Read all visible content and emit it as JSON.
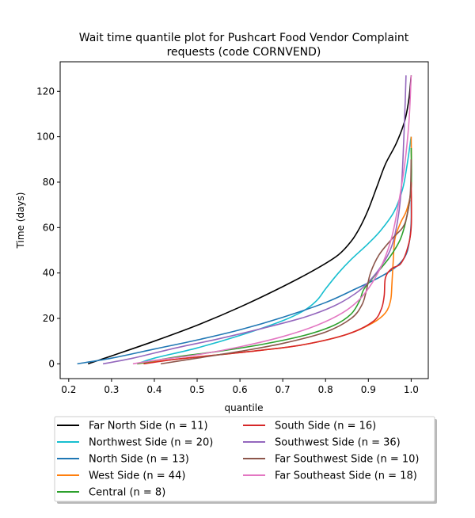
{
  "chart_data": {
    "type": "line",
    "title_line1": "Wait time quantile plot for Pushcart Food Vendor Complaint",
    "title_line2": "requests (code CORNVEND)",
    "xlabel": "quantile",
    "ylabel": "Time (days)",
    "xlim": [
      0.18,
      1.04
    ],
    "ylim": [
      -6.5,
      133
    ],
    "xticks": [
      0.2,
      0.3,
      0.4,
      0.5,
      0.6,
      0.7,
      0.8,
      0.9,
      1.0
    ],
    "xtick_labels": [
      "0.2",
      "0.3",
      "0.4",
      "0.5",
      "0.6",
      "0.7",
      "0.8",
      "0.9",
      "1.0"
    ],
    "yticks": [
      0,
      20,
      40,
      60,
      80,
      100,
      120
    ],
    "ytick_labels": [
      "0",
      "20",
      "40",
      "60",
      "80",
      "100",
      "120"
    ],
    "grid": false,
    "legend_placement": "below plot",
    "series": [
      {
        "name": "Far North Side (n = 11)",
        "color": "#000000",
        "points": [
          [
            0.245,
            0
          ],
          [
            0.3,
            3.5
          ],
          [
            0.4,
            10
          ],
          [
            0.5,
            17
          ],
          [
            0.6,
            25
          ],
          [
            0.7,
            34
          ],
          [
            0.78,
            42
          ],
          [
            0.83,
            48
          ],
          [
            0.86,
            54
          ],
          [
            0.88,
            60
          ],
          [
            0.9,
            68
          ],
          [
            0.92,
            78
          ],
          [
            0.94,
            88
          ],
          [
            0.965,
            97
          ],
          [
            0.985,
            107
          ],
          [
            0.995,
            117
          ],
          [
            1.0,
            127
          ]
        ]
      },
      {
        "name": "Northwest Side (n = 20)",
        "color": "#17becf",
        "points": [
          [
            0.36,
            0
          ],
          [
            0.4,
            2.5
          ],
          [
            0.5,
            7
          ],
          [
            0.6,
            12.5
          ],
          [
            0.7,
            19
          ],
          [
            0.75,
            23.5
          ],
          [
            0.78,
            28
          ],
          [
            0.8,
            33
          ],
          [
            0.83,
            40
          ],
          [
            0.86,
            46
          ],
          [
            0.9,
            53
          ],
          [
            0.93,
            59
          ],
          [
            0.96,
            67
          ],
          [
            0.98,
            77
          ],
          [
            0.99,
            87
          ],
          [
            1.0,
            100
          ]
        ]
      },
      {
        "name": "North Side (n = 13)",
        "color": "#1f77b4",
        "points": [
          [
            0.22,
            0
          ],
          [
            0.3,
            2.5
          ],
          [
            0.4,
            6.5
          ],
          [
            0.5,
            10.5
          ],
          [
            0.6,
            15
          ],
          [
            0.7,
            20.5
          ],
          [
            0.8,
            27
          ],
          [
            0.87,
            33
          ],
          [
            0.92,
            37.5
          ],
          [
            0.96,
            42
          ],
          [
            0.985,
            47
          ],
          [
            0.995,
            53
          ],
          [
            1.0,
            62
          ],
          [
            1.0,
            72
          ]
        ]
      },
      {
        "name": "West Side (n = 44)",
        "color": "#ff7f0e",
        "points": [
          [
            0.36,
            0
          ],
          [
            0.45,
            2
          ],
          [
            0.55,
            4
          ],
          [
            0.65,
            6
          ],
          [
            0.75,
            8.5
          ],
          [
            0.85,
            13
          ],
          [
            0.91,
            18
          ],
          [
            0.94,
            22.5
          ],
          [
            0.952,
            28
          ],
          [
            0.955,
            35
          ],
          [
            0.958,
            45
          ],
          [
            0.962,
            55
          ],
          [
            0.975,
            62
          ],
          [
            0.99,
            68
          ],
          [
            1.0,
            78
          ],
          [
            1.0,
            100
          ]
        ]
      },
      {
        "name": "Central (n = 8)",
        "color": "#2ca02c",
        "points": [
          [
            0.36,
            0
          ],
          [
            0.45,
            3
          ],
          [
            0.55,
            5.5
          ],
          [
            0.65,
            8.5
          ],
          [
            0.75,
            12.5
          ],
          [
            0.82,
            17
          ],
          [
            0.86,
            22
          ],
          [
            0.88,
            28
          ],
          [
            0.89,
            33
          ],
          [
            0.92,
            40
          ],
          [
            0.95,
            47
          ],
          [
            0.975,
            55
          ],
          [
            0.99,
            65
          ],
          [
            1.0,
            78
          ],
          [
            1.0,
            95
          ]
        ]
      },
      {
        "name": "South Side (n = 16)",
        "color": "#d62728",
        "points": [
          [
            0.375,
            0
          ],
          [
            0.45,
            2
          ],
          [
            0.55,
            4
          ],
          [
            0.65,
            6
          ],
          [
            0.75,
            8.5
          ],
          [
            0.85,
            13
          ],
          [
            0.91,
            18.5
          ],
          [
            0.93,
            24
          ],
          [
            0.937,
            30
          ],
          [
            0.94,
            38
          ],
          [
            0.955,
            42
          ],
          [
            0.975,
            44
          ],
          [
            0.99,
            50
          ],
          [
            1.0,
            60
          ],
          [
            1.0,
            80
          ]
        ]
      },
      {
        "name": "Southwest Side (n = 36)",
        "color": "#9467bd",
        "points": [
          [
            0.28,
            0
          ],
          [
            0.35,
            2.5
          ],
          [
            0.45,
            7
          ],
          [
            0.55,
            11
          ],
          [
            0.65,
            15.5
          ],
          [
            0.75,
            20.5
          ],
          [
            0.82,
            25.5
          ],
          [
            0.87,
            31
          ],
          [
            0.9,
            36
          ],
          [
            0.93,
            43
          ],
          [
            0.955,
            52
          ],
          [
            0.97,
            65
          ],
          [
            0.978,
            80
          ],
          [
            0.983,
            100
          ],
          [
            0.986,
            115
          ],
          [
            0.988,
            127
          ]
        ]
      },
      {
        "name": "Far Southwest Side (n = 10)",
        "color": "#8c564b",
        "points": [
          [
            0.415,
            0
          ],
          [
            0.5,
            2.5
          ],
          [
            0.6,
            5.5
          ],
          [
            0.7,
            9
          ],
          [
            0.8,
            14
          ],
          [
            0.86,
            20
          ],
          [
            0.885,
            26
          ],
          [
            0.895,
            32
          ],
          [
            0.905,
            40
          ],
          [
            0.925,
            48
          ],
          [
            0.955,
            55
          ],
          [
            0.98,
            60
          ],
          [
            0.99,
            65
          ],
          [
            0.998,
            75
          ],
          [
            1.0,
            90
          ]
        ]
      },
      {
        "name": "Far Southeast Side (n = 18)",
        "color": "#e377c2",
        "points": [
          [
            0.35,
            0
          ],
          [
            0.4,
            1.5
          ],
          [
            0.5,
            4
          ],
          [
            0.6,
            7.5
          ],
          [
            0.7,
            12
          ],
          [
            0.78,
            17
          ],
          [
            0.84,
            22.5
          ],
          [
            0.88,
            28.5
          ],
          [
            0.91,
            36
          ],
          [
            0.935,
            45
          ],
          [
            0.955,
            56
          ],
          [
            0.97,
            70
          ],
          [
            0.985,
            88
          ],
          [
            0.995,
            107
          ],
          [
            1.0,
            127
          ]
        ]
      }
    ]
  }
}
